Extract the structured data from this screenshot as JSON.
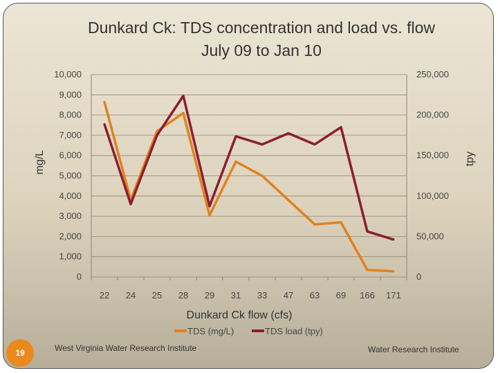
{
  "chart_data": {
    "type": "line",
    "title": "Dunkard Ck:  TDS concentration and load vs. flow",
    "subtitle": "July 09 to Jan 10",
    "xlabel": "Dunkard Ck flow (cfs)",
    "ylabel": "mg/L",
    "y2label": "tpy",
    "categories": [
      "22",
      "24",
      "25",
      "28",
      "29",
      "31",
      "33",
      "47",
      "63",
      "69",
      "166",
      "171"
    ],
    "ylim": [
      0,
      10000
    ],
    "y2lim": [
      0,
      250000
    ],
    "yticks": [
      "0",
      "1,000",
      "2,000",
      "3,000",
      "4,000",
      "5,000",
      "6,000",
      "7,000",
      "8,000",
      "9,000",
      "10,000"
    ],
    "y2ticks": [
      "0",
      "50,000",
      "100,000",
      "150,000",
      "200,000",
      "250,000"
    ],
    "grid": true,
    "legend": "bottom",
    "series": [
      {
        "name": "TDS (mg/L)",
        "axis": "left",
        "color": "#e0821e",
        "values": [
          8650,
          3800,
          7200,
          8100,
          3050,
          5700,
          5000,
          3800,
          2600,
          2700,
          350,
          280
        ]
      },
      {
        "name": "TDS load (tpy)",
        "axis": "right",
        "color": "#8b1e2e",
        "values": [
          188750,
          90000,
          175000,
          223750,
          87500,
          173750,
          163750,
          177500,
          163750,
          185000,
          56250,
          46250
        ]
      }
    ]
  },
  "footer": {
    "slide_number": "19",
    "left_text": "West Virginia Water Research Institute",
    "right_text": "Water Research Institute"
  }
}
